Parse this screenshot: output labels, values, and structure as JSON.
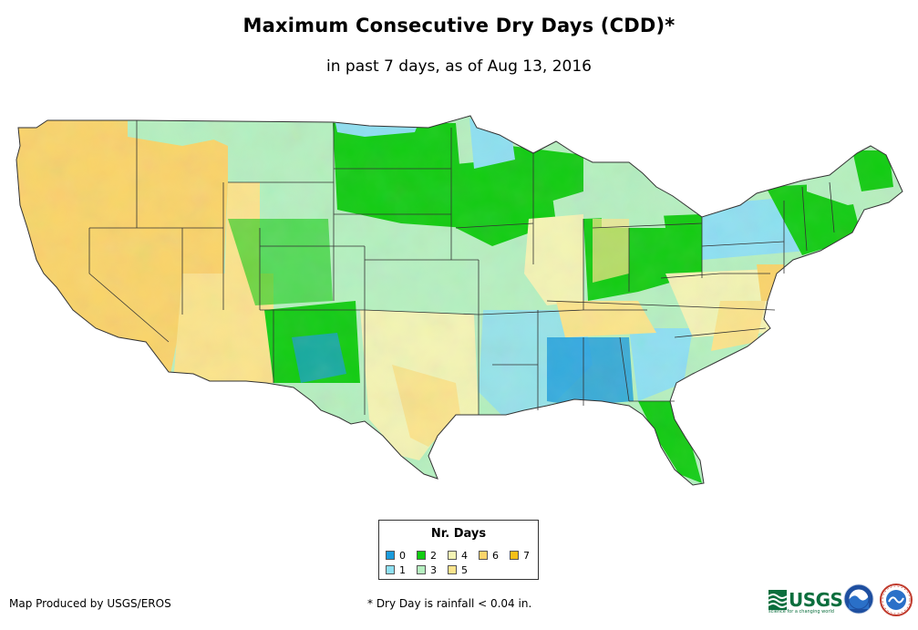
{
  "title": "Maximum Consecutive Dry Days (CDD)*",
  "subtitle": "in past 7 days, as of Aug 13, 2016",
  "map": {
    "region": "Contiguous United States",
    "background_color": "#ffffff",
    "border_color": "#333333"
  },
  "legend": {
    "title": "Nr. Days",
    "items": [
      {
        "label": "0",
        "color": "#1a9bdc"
      },
      {
        "label": "1",
        "color": "#8ee0f2"
      },
      {
        "label": "2",
        "color": "#11cc11"
      },
      {
        "label": "3",
        "color": "#b6f0c0"
      },
      {
        "label": "4",
        "color": "#f4f4b4"
      },
      {
        "label": "5",
        "color": "#fbe48c"
      },
      {
        "label": "6",
        "color": "#fad46a"
      },
      {
        "label": "7",
        "color": "#f5c018"
      }
    ]
  },
  "footer": {
    "credit": "Map Produced by USGS/EROS",
    "note": "* Dry Day is rainfall < 0.04 in."
  },
  "logos": {
    "usgs_text": "USGS",
    "usgs_tagline": "science for a changing world",
    "noaa_icon": "noaa-logo",
    "nws_icon": "nws-logo"
  }
}
